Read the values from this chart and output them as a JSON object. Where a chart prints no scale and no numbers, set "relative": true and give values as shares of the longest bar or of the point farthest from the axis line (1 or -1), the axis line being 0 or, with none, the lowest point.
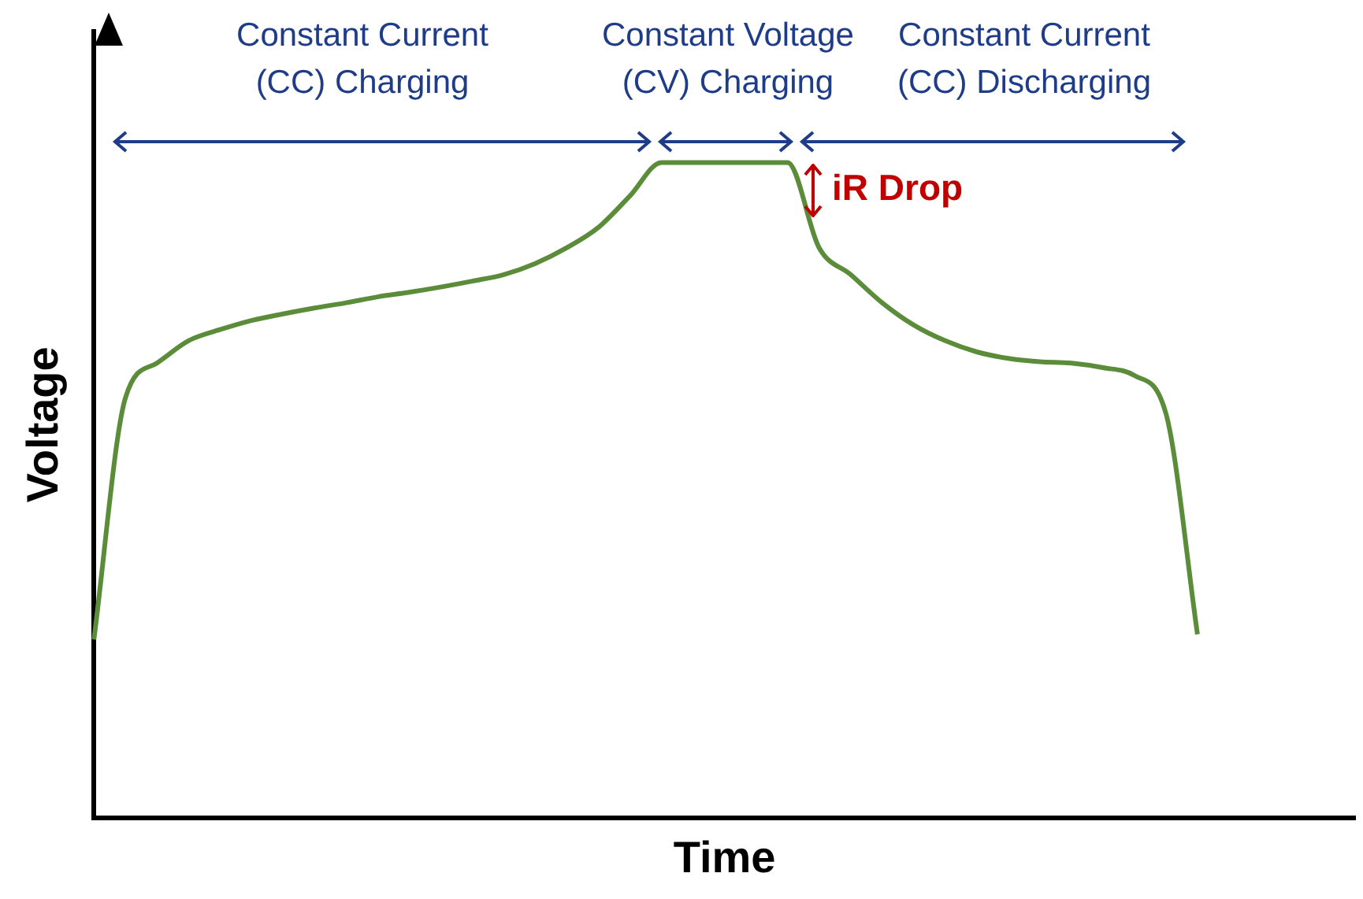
{
  "chart_data": {
    "type": "line",
    "relative": true,
    "xlabel": "Time",
    "ylabel": "Voltage",
    "color": "#5b8c3a",
    "grid": false,
    "legend": false,
    "marker": "none",
    "line_style": "solid",
    "categories": [
      null,
      null,
      null,
      null,
      null,
      null,
      null,
      null,
      null,
      null,
      null,
      null,
      null,
      null,
      null,
      null,
      null,
      null,
      null,
      null,
      null,
      null,
      null,
      null,
      null,
      null,
      null,
      null,
      null,
      null,
      null,
      null,
      null,
      null,
      null,
      null,
      null,
      null,
      null,
      null,
      null
    ],
    "values": [
      0.272,
      0.641,
      0.694,
      0.728,
      0.745,
      0.759,
      0.769,
      0.778,
      0.786,
      0.795,
      0.802,
      0.81,
      0.819,
      0.829,
      0.846,
      0.87,
      0.901,
      0.949,
      1,
      1,
      1,
      1,
      1,
      0.87,
      0.829,
      0.786,
      0.752,
      0.728,
      0.711,
      0.701,
      0.696,
      0.694,
      0.687,
      0.675,
      0.617,
      0.28,
      null,
      null,
      null,
      null,
      null
    ],
    "annotations": [
      "Constant Current\n(CC) Charging",
      "Constant Voltage\n(CV) Charging",
      "Constant Current\n(CC) Discharging",
      "iR Drop"
    ]
  }
}
